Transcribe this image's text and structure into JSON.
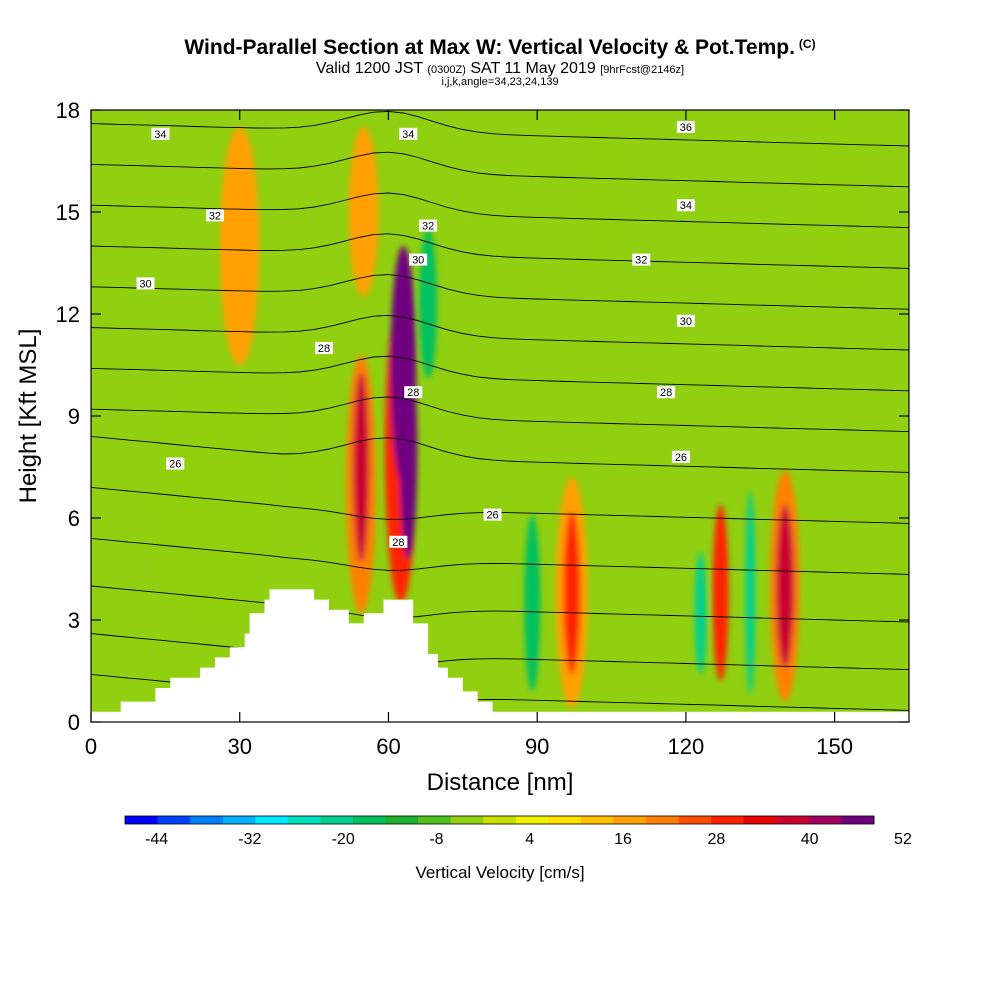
{
  "header": {
    "title": "Wind-Parallel Section at Max W: Vertical Velocity & Pot.Temp.",
    "copyright": "(C)",
    "valid_prefix": "Valid 1200 JST",
    "valid_utc": "(0300Z)",
    "valid_date": "SAT 11 May 2019",
    "forecast": "[9hrFcst@2146z]",
    "params": "i,j,k,angle=34,23,24,139"
  },
  "chart_data": {
    "type": "heatmap",
    "xlabel": "Distance [nm]",
    "ylabel": "Height [Kft MSL]",
    "xlim": [
      0,
      165
    ],
    "ylim": [
      0,
      18
    ],
    "x_ticks": [
      "0",
      "30",
      "60",
      "90",
      "120",
      "150"
    ],
    "y_ticks": [
      "0",
      "3",
      "6",
      "9",
      "12",
      "15",
      "18"
    ],
    "colorbar": {
      "label": "Vertical Velocity [cm/s]",
      "tick_labels": [
        "-44",
        "-32",
        "-20",
        "-8",
        "4",
        "16",
        "28",
        "40",
        "52"
      ],
      "colors": [
        "#0000ff",
        "#0040ff",
        "#0080ff",
        "#00b0ff",
        "#00e8ff",
        "#00e0c0",
        "#00d090",
        "#00c060",
        "#20b030",
        "#50c020",
        "#90d010",
        "#c8e000",
        "#f0f000",
        "#ffe000",
        "#ffc000",
        "#ffa000",
        "#ff8000",
        "#ff5000",
        "#ff2000",
        "#e80000",
        "#c80030",
        "#a00060",
        "#700080"
      ]
    },
    "theta_contour_labels": [
      {
        "label": "34",
        "x": 14,
        "y": 17.3
      },
      {
        "label": "32",
        "x": 25,
        "y": 14.9
      },
      {
        "label": "30",
        "x": 11,
        "y": 12.9
      },
      {
        "label": "28",
        "x": 47,
        "y": 11.0
      },
      {
        "label": "26",
        "x": 17,
        "y": 7.6
      },
      {
        "label": "34",
        "x": 64,
        "y": 17.3
      },
      {
        "label": "32",
        "x": 68,
        "y": 14.6
      },
      {
        "label": "30",
        "x": 66,
        "y": 13.6
      },
      {
        "label": "28",
        "x": 65,
        "y": 9.7
      },
      {
        "label": "28",
        "x": 62,
        "y": 5.3
      },
      {
        "label": "26",
        "x": 81,
        "y": 6.1
      },
      {
        "label": "36",
        "x": 120,
        "y": 17.5
      },
      {
        "label": "34",
        "x": 120,
        "y": 15.2
      },
      {
        "label": "32",
        "x": 111,
        "y": 13.6
      },
      {
        "label": "30",
        "x": 120,
        "y": 11.8
      },
      {
        "label": "28",
        "x": 116,
        "y": 9.7
      },
      {
        "label": "26",
        "x": 119,
        "y": 7.8
      }
    ],
    "terrain_profile": [
      [
        0,
        0.3
      ],
      [
        6,
        0.3
      ],
      [
        6,
        0.6
      ],
      [
        13,
        0.6
      ],
      [
        13,
        1.0
      ],
      [
        16,
        1.0
      ],
      [
        16,
        1.3
      ],
      [
        22,
        1.3
      ],
      [
        22,
        1.6
      ],
      [
        25,
        1.6
      ],
      [
        25,
        1.9
      ],
      [
        28,
        1.9
      ],
      [
        28,
        2.2
      ],
      [
        31,
        2.2
      ],
      [
        31,
        2.6
      ],
      [
        32,
        2.6
      ],
      [
        32,
        3.2
      ],
      [
        35,
        3.2
      ],
      [
        35,
        3.6
      ],
      [
        36,
        3.6
      ],
      [
        36,
        3.9
      ],
      [
        45,
        3.9
      ],
      [
        45,
        3.6
      ],
      [
        48,
        3.6
      ],
      [
        48,
        3.3
      ],
      [
        52,
        3.3
      ],
      [
        52,
        2.9
      ],
      [
        55,
        2.9
      ],
      [
        55,
        3.2
      ],
      [
        59,
        3.2
      ],
      [
        59,
        3.6
      ],
      [
        65,
        3.6
      ],
      [
        65,
        2.9
      ],
      [
        68,
        2.9
      ],
      [
        68,
        2.0
      ],
      [
        70,
        2.0
      ],
      [
        70,
        1.6
      ],
      [
        72,
        1.6
      ],
      [
        72,
        1.3
      ],
      [
        75,
        1.3
      ],
      [
        75,
        0.9
      ],
      [
        78,
        0.9
      ],
      [
        78,
        0.6
      ],
      [
        81,
        0.6
      ],
      [
        81,
        0.3
      ],
      [
        165,
        0.3
      ]
    ],
    "w_cells": [
      {
        "x": 64,
        "y": 8.0,
        "rx": 1.8,
        "ry": 3.2,
        "w": 56
      },
      {
        "x": 63,
        "y": 10.5,
        "rx": 2.6,
        "ry": 3.5,
        "w": 38
      },
      {
        "x": 62.5,
        "y": 8.0,
        "rx": 3.2,
        "ry": 4.5,
        "w": 22
      },
      {
        "x": 54.5,
        "y": 7.5,
        "rx": 1.6,
        "ry": 2.8,
        "w": 30
      },
      {
        "x": 54.5,
        "y": 7.0,
        "rx": 3.0,
        "ry": 3.8,
        "w": 14
      },
      {
        "x": 68,
        "y": 12.3,
        "rx": 1.8,
        "ry": 2.2,
        "w": -20
      },
      {
        "x": 89,
        "y": 3.5,
        "rx": 1.6,
        "ry": 2.6,
        "w": -22
      },
      {
        "x": 97,
        "y": 3.8,
        "rx": 1.7,
        "ry": 2.4,
        "w": 22
      },
      {
        "x": 97,
        "y": 3.8,
        "rx": 3.2,
        "ry": 3.4,
        "w": 10
      },
      {
        "x": 123,
        "y": 3.2,
        "rx": 1.2,
        "ry": 1.8,
        "w": -24
      },
      {
        "x": 127,
        "y": 3.8,
        "rx": 1.6,
        "ry": 2.6,
        "w": 22
      },
      {
        "x": 133,
        "y": 3.8,
        "rx": 1.0,
        "ry": 3.0,
        "w": -24
      },
      {
        "x": 140,
        "y": 4.0,
        "rx": 1.8,
        "ry": 2.4,
        "w": 32
      },
      {
        "x": 140,
        "y": 4.0,
        "rx": 3.0,
        "ry": 3.4,
        "w": 14
      },
      {
        "x": 24,
        "y": 6.5,
        "rx": 12.0,
        "ry": 3.8,
        "w": -10
      },
      {
        "x": 44,
        "y": 9.0,
        "rx": 5.0,
        "ry": 3.0,
        "w": -10
      },
      {
        "x": 30,
        "y": 14.0,
        "rx": 4.0,
        "ry": 3.5,
        "w": 10
      },
      {
        "x": 55,
        "y": 15.0,
        "rx": 3.0,
        "ry": 2.5,
        "w": 10
      },
      {
        "x": 103,
        "y": 15.5,
        "rx": 4.0,
        "ry": 2.5,
        "w": -8
      },
      {
        "x": 150,
        "y": 15.5,
        "rx": 5.0,
        "ry": 3.0,
        "w": -8
      }
    ]
  }
}
